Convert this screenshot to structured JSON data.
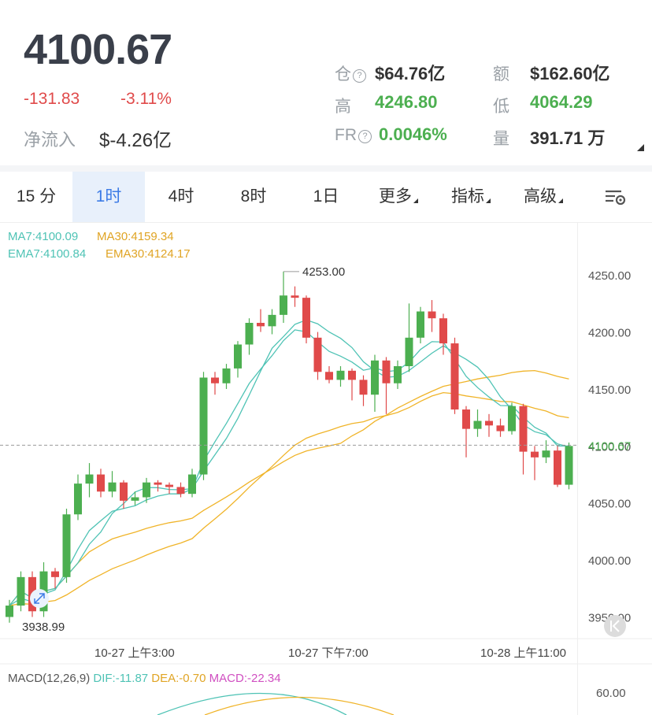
{
  "header": {
    "price": "4100.67",
    "change": "-131.83",
    "change_pct": "-3.11%",
    "netflow_label": "净流入",
    "netflow_value": "$-4.26亿",
    "stats": {
      "oi_label": "仓",
      "oi_value": "$64.76亿",
      "amount_label": "额",
      "amount_value": "$162.60亿",
      "high_label": "高",
      "high_value": "4246.80",
      "low_label": "低",
      "low_value": "4064.29",
      "fr_label": "FR",
      "fr_value": "0.0046%",
      "volume_label": "量",
      "volume_value": "391.71 万"
    }
  },
  "tabs": [
    {
      "label": "15 分",
      "active": false
    },
    {
      "label": "1时",
      "active": true
    },
    {
      "label": "4时",
      "active": false
    },
    {
      "label": "8时",
      "active": false
    },
    {
      "label": "1日",
      "active": false
    },
    {
      "label": "更多",
      "active": false,
      "dropdown": true
    },
    {
      "label": "指标",
      "active": false,
      "dropdown": true
    },
    {
      "label": "高级",
      "active": false,
      "dropdown": true
    }
  ],
  "legend": {
    "ma7": "MA7:4100.09",
    "ma30": "MA30:4159.34",
    "ema7": "EMA7:4100.84",
    "ema30": "EMA30:4124.17"
  },
  "macd_legend": {
    "macd_params": "MACD(12,26,9)",
    "dif": "DIF:-11.87",
    "dea": "DEA:-0.70",
    "macd": "MACD:-22.34"
  },
  "colors": {
    "up": "#4caf50",
    "down": "#e04a4a",
    "ma_cyan": "#4fc3b5",
    "ma_yellow": "#f0b429",
    "macd_pink": "#d04fc1",
    "accent": "#3c7be6"
  },
  "chart_data": {
    "type": "candlestick",
    "y_ticks": [
      "4250.00",
      "4200.00",
      "4150.00",
      "4100.00",
      "4050.00",
      "4000.00",
      "3950.00"
    ],
    "ylim": [
      3940,
      4275
    ],
    "x_ticks": [
      "10-27 上午3:00",
      "10-27 下午7:00",
      "10-28 上午11:00"
    ],
    "current_price": "4100.67",
    "high_annotation": "4253.00",
    "low_annotation": "3938.99",
    "candles": [
      [
        3950,
        3960,
        3945,
        3965
      ],
      [
        3960,
        3985,
        3955,
        3990
      ],
      [
        3985,
        3955,
        3950,
        3990
      ],
      [
        3955,
        3990,
        3950,
        3998
      ],
      [
        3990,
        3985,
        3975,
        3993
      ],
      [
        3985,
        4040,
        3980,
        4045
      ],
      [
        4040,
        4067,
        4035,
        4075
      ],
      [
        4067,
        4075,
        4055,
        4085
      ],
      [
        4075,
        4060,
        4055,
        4080
      ],
      [
        4060,
        4068,
        4055,
        4078
      ],
      [
        4068,
        4052,
        4045,
        4070
      ],
      [
        4052,
        4055,
        4048,
        4060
      ],
      [
        4055,
        4068,
        4050,
        4072
      ],
      [
        4068,
        4066,
        4060,
        4070
      ],
      [
        4066,
        4064,
        4058,
        4068
      ],
      [
        4064,
        4058,
        4055,
        4068
      ],
      [
        4058,
        4075,
        4055,
        4080
      ],
      [
        4075,
        4160,
        4070,
        4165
      ],
      [
        4160,
        4155,
        4145,
        4165
      ],
      [
        4155,
        4168,
        4150,
        4172
      ],
      [
        4168,
        4189,
        4160,
        4192
      ],
      [
        4189,
        4208,
        4180,
        4212
      ],
      [
        4208,
        4205,
        4200,
        4220
      ],
      [
        4205,
        4215,
        4198,
        4220
      ],
      [
        4215,
        4232,
        4208,
        4253
      ],
      [
        4232,
        4230,
        4222,
        4240
      ],
      [
        4230,
        4195,
        4190,
        4232
      ],
      [
        4195,
        4165,
        4158,
        4200
      ],
      [
        4165,
        4158,
        4155,
        4170
      ],
      [
        4158,
        4166,
        4152,
        4170
      ],
      [
        4166,
        4158,
        4140,
        4168
      ],
      [
        4158,
        4145,
        4135,
        4162
      ],
      [
        4145,
        4175,
        4130,
        4180
      ],
      [
        4175,
        4155,
        4128,
        4178
      ],
      [
        4155,
        4170,
        4150,
        4175
      ],
      [
        4170,
        4195,
        4165,
        4225
      ],
      [
        4195,
        4218,
        4190,
        4222
      ],
      [
        4218,
        4212,
        4200,
        4228
      ],
      [
        4212,
        4190,
        4180,
        4216
      ],
      [
        4190,
        4132,
        4128,
        4195
      ],
      [
        4132,
        4115,
        4090,
        4135
      ],
      [
        4115,
        4122,
        4108,
        4132
      ],
      [
        4122,
        4118,
        4108,
        4128
      ],
      [
        4118,
        4113,
        4108,
        4124
      ],
      [
        4113,
        4135,
        4110,
        4138
      ],
      [
        4135,
        4095,
        4075,
        4137
      ],
      [
        4095,
        4090,
        4070,
        4100
      ],
      [
        4090,
        4096,
        4085,
        4105
      ],
      [
        4096,
        4066,
        4064,
        4100
      ],
      [
        4066,
        4100,
        4062,
        4103
      ]
    ]
  }
}
